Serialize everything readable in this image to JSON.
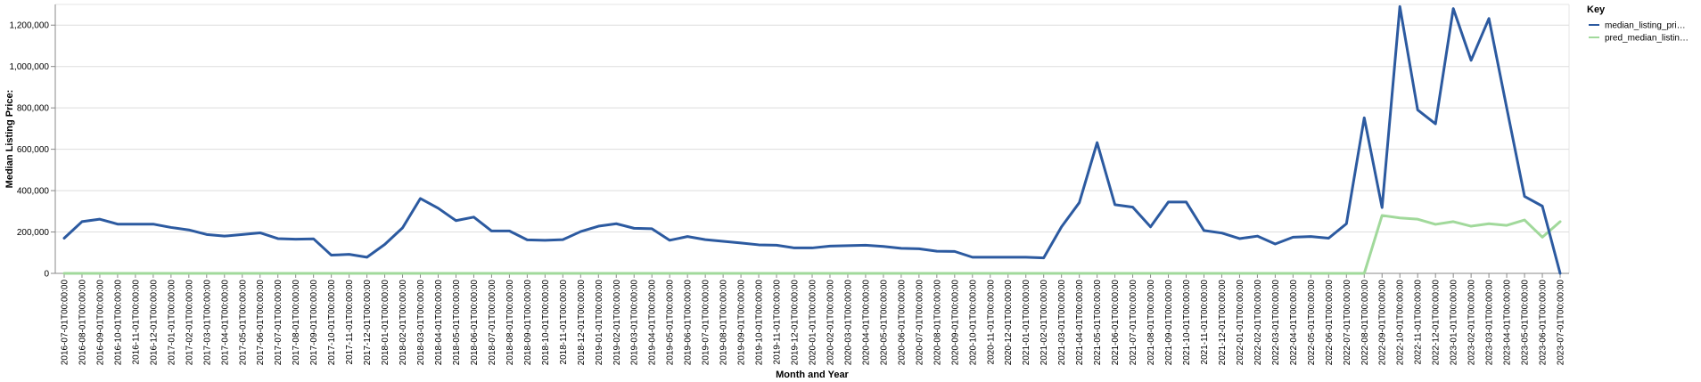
{
  "chart_data": {
    "type": "line",
    "xlabel": "Month and Year",
    "ylabel": "Median Listing Price:",
    "ylim": [
      0,
      1300000
    ],
    "y_ticks": [
      0,
      200000,
      400000,
      600000,
      800000,
      1000000,
      1200000
    ],
    "y_tick_labels": [
      "0",
      "200,000",
      "400,000",
      "600,000",
      "800,000",
      "1,000,000",
      "1,200,000"
    ],
    "grid": true,
    "legend": {
      "title": "Key",
      "position": "right"
    },
    "x": [
      "2016-07-01T00:00:00",
      "2016-08-01T00:00:00",
      "2016-09-01T00:00:00",
      "2016-10-01T00:00:00",
      "2016-11-01T00:00:00",
      "2016-12-01T00:00:00",
      "2017-01-01T00:00:00",
      "2017-02-01T00:00:00",
      "2017-03-01T00:00:00",
      "2017-04-01T00:00:00",
      "2017-05-01T00:00:00",
      "2017-06-01T00:00:00",
      "2017-07-01T00:00:00",
      "2017-08-01T00:00:00",
      "2017-09-01T00:00:00",
      "2017-10-01T00:00:00",
      "2017-11-01T00:00:00",
      "2017-12-01T00:00:00",
      "2018-01-01T00:00:00",
      "2018-02-01T00:00:00",
      "2018-03-01T00:00:00",
      "2018-04-01T00:00:00",
      "2018-05-01T00:00:00",
      "2018-06-01T00:00:00",
      "2018-07-01T00:00:00",
      "2018-08-01T00:00:00",
      "2018-09-01T00:00:00",
      "2018-10-01T00:00:00",
      "2018-11-01T00:00:00",
      "2018-12-01T00:00:00",
      "2019-01-01T00:00:00",
      "2019-02-01T00:00:00",
      "2019-03-01T00:00:00",
      "2019-04-01T00:00:00",
      "2019-05-01T00:00:00",
      "2019-06-01T00:00:00",
      "2019-07-01T00:00:00",
      "2019-08-01T00:00:00",
      "2019-09-01T00:00:00",
      "2019-10-01T00:00:00",
      "2019-11-01T00:00:00",
      "2019-12-01T00:00:00",
      "2020-01-01T00:00:00",
      "2020-02-01T00:00:00",
      "2020-03-01T00:00:00",
      "2020-04-01T00:00:00",
      "2020-05-01T00:00:00",
      "2020-06-01T00:00:00",
      "2020-07-01T00:00:00",
      "2020-08-01T00:00:00",
      "2020-09-01T00:00:00",
      "2020-10-01T00:00:00",
      "2020-11-01T00:00:00",
      "2020-12-01T00:00:00",
      "2021-01-01T00:00:00",
      "2021-02-01T00:00:00",
      "2021-03-01T00:00:00",
      "2021-04-01T00:00:00",
      "2021-05-01T00:00:00",
      "2021-06-01T00:00:00",
      "2021-07-01T00:00:00",
      "2021-08-01T00:00:00",
      "2021-09-01T00:00:00",
      "2021-10-01T00:00:00",
      "2021-11-01T00:00:00",
      "2021-12-01T00:00:00",
      "2022-01-01T00:00:00",
      "2022-02-01T00:00:00",
      "2022-03-01T00:00:00",
      "2022-04-01T00:00:00",
      "2022-05-01T00:00:00",
      "2022-06-01T00:00:00",
      "2022-07-01T00:00:00",
      "2022-08-01T00:00:00",
      "2022-09-01T00:00:00",
      "2022-10-01T00:00:00",
      "2022-11-01T00:00:00",
      "2022-12-01T00:00:00",
      "2023-01-01T00:00:00",
      "2023-02-01T00:00:00",
      "2023-03-01T00:00:00",
      "2023-04-01T00:00:00",
      "2023-05-01T00:00:00",
      "2023-06-01T00:00:00",
      "2023-07-01T00:00:00"
    ],
    "series": [
      {
        "name": "median_listing_pri…",
        "color": "#2c5aa0",
        "values": [
          170000,
          250000,
          262000,
          238000,
          238000,
          238000,
          222000,
          210000,
          188000,
          180000,
          188000,
          196000,
          168000,
          165000,
          167000,
          88000,
          92000,
          78000,
          140000,
          220000,
          362000,
          315000,
          255000,
          272000,
          205000,
          205000,
          162000,
          160000,
          163000,
          202000,
          228000,
          240000,
          218000,
          216000,
          160000,
          178000,
          163000,
          155000,
          147000,
          138000,
          136000,
          123000,
          123000,
          132000,
          134000,
          136000,
          130000,
          121000,
          119000,
          107000,
          106000,
          78000,
          78000,
          78000,
          78000,
          75000,
          225000,
          342000,
          632000,
          332000,
          320000,
          225000,
          345000,
          345000,
          207000,
          195000,
          168000,
          180000,
          142000,
          175000,
          178000,
          170000,
          240000,
          752000,
          318000,
          1290000,
          790000,
          723000,
          1280000,
          1030000,
          1232000,
          800000,
          372000,
          325000,
          0
        ]
      },
      {
        "name": "pred_median_listin…",
        "color": "#a1d99b",
        "values": [
          0,
          0,
          0,
          0,
          0,
          0,
          0,
          0,
          0,
          0,
          0,
          0,
          0,
          0,
          0,
          0,
          0,
          0,
          0,
          0,
          0,
          0,
          0,
          0,
          0,
          0,
          0,
          0,
          0,
          0,
          0,
          0,
          0,
          0,
          0,
          0,
          0,
          0,
          0,
          0,
          0,
          0,
          0,
          0,
          0,
          0,
          0,
          0,
          0,
          0,
          0,
          0,
          0,
          0,
          0,
          0,
          0,
          0,
          0,
          0,
          0,
          0,
          0,
          0,
          0,
          0,
          0,
          0,
          0,
          0,
          0,
          0,
          0,
          0,
          280000,
          268000,
          262000,
          237000,
          250000,
          228000,
          240000,
          232000,
          258000,
          175000,
          250000
        ]
      }
    ]
  }
}
